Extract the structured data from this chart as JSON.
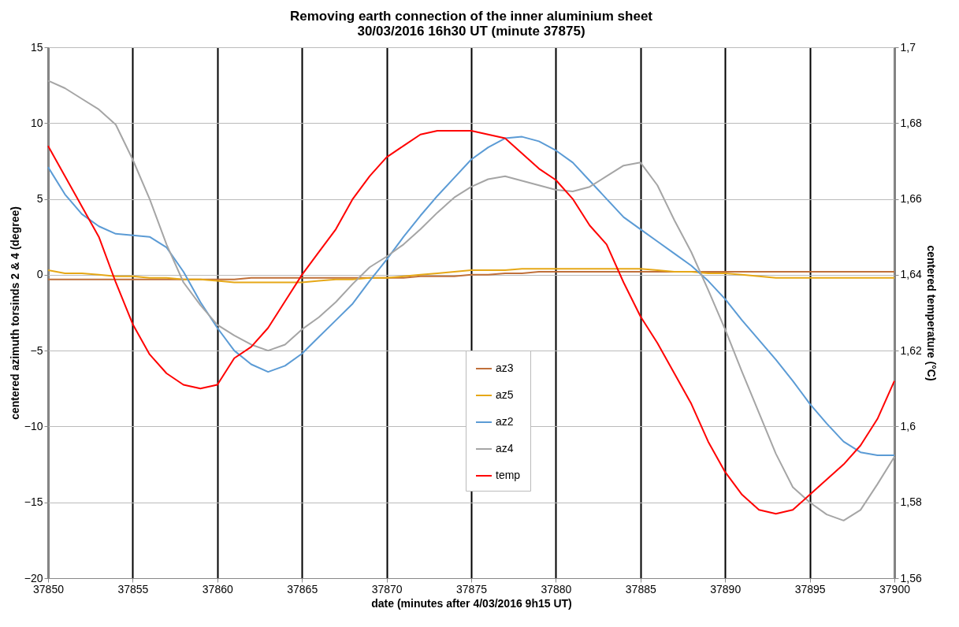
{
  "chart_data": {
    "type": "line",
    "title": [
      "Removing earth connection of the inner aluminium sheet",
      "30/03/2016  16h30 UT (minute 37875)"
    ],
    "xlabel": "date (minutes after 4/03/2016 9h15 UT)",
    "ylabel": "centered azimuth torsinds 2 & 4 (degree)",
    "y2label": "centered temperature (°C)",
    "x": [
      37850,
      37851,
      37852,
      37853,
      37854,
      37855,
      37856,
      37857,
      37858,
      37859,
      37860,
      37861,
      37862,
      37863,
      37864,
      37865,
      37866,
      37867,
      37868,
      37869,
      37870,
      37871,
      37872,
      37873,
      37874,
      37875,
      37876,
      37877,
      37878,
      37879,
      37880,
      37881,
      37882,
      37883,
      37884,
      37885,
      37886,
      37887,
      37888,
      37889,
      37890,
      37891,
      37892,
      37893,
      37894,
      37895,
      37896,
      37897,
      37898,
      37899,
      37900
    ],
    "series": [
      {
        "name": "az3",
        "color": "#c0703a",
        "values": [
          -0.3,
          -0.3,
          -0.3,
          -0.3,
          -0.3,
          -0.3,
          -0.3,
          -0.3,
          -0.3,
          -0.3,
          -0.3,
          -0.3,
          -0.2,
          -0.2,
          -0.2,
          -0.2,
          -0.2,
          -0.2,
          -0.2,
          -0.2,
          -0.2,
          -0.2,
          -0.1,
          -0.1,
          -0.1,
          0.0,
          0.0,
          0.1,
          0.1,
          0.2,
          0.2,
          0.2,
          0.2,
          0.2,
          0.2,
          0.2,
          0.2,
          0.2,
          0.2,
          0.2,
          0.2,
          0.2,
          0.2,
          0.2,
          0.2,
          0.2,
          0.2,
          0.2,
          0.2,
          0.2,
          0.2
        ]
      },
      {
        "name": "az5",
        "color": "#e6a817",
        "values": [
          0.3,
          0.1,
          0.1,
          0.0,
          -0.1,
          -0.1,
          -0.2,
          -0.2,
          -0.3,
          -0.3,
          -0.4,
          -0.5,
          -0.5,
          -0.5,
          -0.5,
          -0.5,
          -0.4,
          -0.3,
          -0.3,
          -0.2,
          -0.2,
          -0.1,
          0.0,
          0.1,
          0.2,
          0.3,
          0.3,
          0.3,
          0.4,
          0.4,
          0.4,
          0.4,
          0.4,
          0.4,
          0.4,
          0.4,
          0.3,
          0.2,
          0.2,
          0.1,
          0.1,
          0.0,
          -0.1,
          -0.2,
          -0.2,
          -0.2,
          -0.2,
          -0.2,
          -0.2,
          -0.2,
          -0.2
        ]
      },
      {
        "name": "az2",
        "color": "#5b9bd5",
        "values": [
          7.1,
          5.3,
          4.0,
          3.2,
          2.7,
          2.6,
          2.5,
          1.8,
          0.2,
          -1.8,
          -3.5,
          -5.0,
          -5.9,
          -6.4,
          -6.0,
          -5.2,
          -4.1,
          -3.0,
          -1.9,
          -0.4,
          1.0,
          2.5,
          3.9,
          5.2,
          6.4,
          7.6,
          8.4,
          9.0,
          9.1,
          8.8,
          8.2,
          7.4,
          6.2,
          5.0,
          3.8,
          3.0,
          2.2,
          1.4,
          0.6,
          -0.4,
          -1.6,
          -3.0,
          -4.3,
          -5.6,
          -7.0,
          -8.5,
          -9.8,
          -11.0,
          -11.7,
          -11.9,
          -11.9
        ]
      },
      {
        "name": "az4",
        "color": "#a5a5a5",
        "values": [
          12.8,
          12.3,
          11.6,
          10.9,
          9.9,
          7.6,
          5.0,
          2.0,
          -0.5,
          -2.0,
          -3.3,
          -4.0,
          -4.6,
          -5.0,
          -4.6,
          -3.6,
          -2.8,
          -1.8,
          -0.6,
          0.5,
          1.2,
          2.0,
          3.0,
          4.1,
          5.1,
          5.8,
          6.3,
          6.5,
          6.2,
          5.9,
          5.6,
          5.5,
          5.8,
          6.5,
          7.2,
          7.4,
          5.9,
          3.6,
          1.5,
          -1.0,
          -3.6,
          -6.4,
          -9.1,
          -11.8,
          -14.0,
          -15.0,
          -15.8,
          -16.2,
          -15.5,
          -13.8,
          -12.0
        ]
      },
      {
        "name": "temp",
        "color": "#ff0000",
        "axis": "y2",
        "values": [
          1.674,
          1.666,
          1.658,
          1.65,
          1.638,
          1.627,
          1.619,
          1.614,
          1.611,
          1.61,
          1.611,
          1.618,
          1.621,
          1.626,
          1.633,
          1.64,
          1.646,
          1.652,
          1.66,
          1.666,
          1.671,
          1.674,
          1.677,
          1.678,
          1.678,
          1.678,
          1.677,
          1.676,
          1.672,
          1.668,
          1.665,
          1.66,
          1.653,
          1.648,
          1.638,
          1.629,
          1.622,
          1.614,
          1.606,
          1.596,
          1.588,
          1.582,
          1.578,
          1.577,
          1.578,
          1.582,
          1.586,
          1.59,
          1.595,
          1.602,
          1.612
        ]
      }
    ],
    "xlim": [
      37850,
      37900
    ],
    "xticks": [
      37850,
      37855,
      37860,
      37865,
      37870,
      37875,
      37880,
      37885,
      37890,
      37895,
      37900
    ],
    "ylim": [
      -20,
      15
    ],
    "yticks": [
      -20,
      -15,
      -10,
      -5,
      0,
      5,
      10,
      15
    ],
    "y2lim": [
      1.56,
      1.7
    ],
    "y2ticks": [
      {
        "value": 1.56,
        "label": "1,56"
      },
      {
        "value": 1.58,
        "label": "1,58"
      },
      {
        "value": 1.6,
        "label": "1,6"
      },
      {
        "value": 1.62,
        "label": "1,62"
      },
      {
        "value": 1.64,
        "label": "1,64"
      },
      {
        "value": 1.66,
        "label": "1,66"
      },
      {
        "value": 1.68,
        "label": "1,68"
      },
      {
        "value": 1.7,
        "label": "1,7"
      }
    ],
    "grid": true,
    "legend": "bottom",
    "marker": "none",
    "line_style": "solid"
  }
}
